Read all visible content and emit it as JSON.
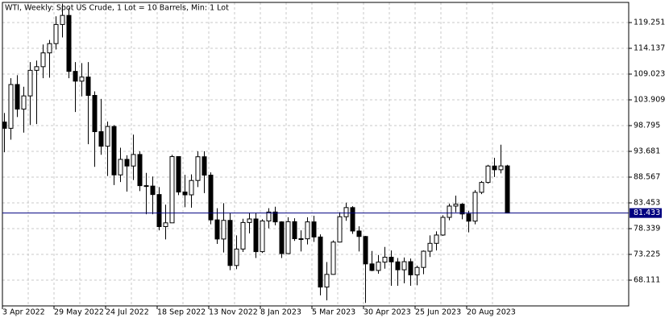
{
  "chart_data": {
    "type": "candlestick",
    "title": "WTI, Weekly:  Spot US Crude, 1 Lot = 10 Barrels, Min: 1 Lot",
    "categories": [
      "3 Apr 2022",
      null,
      null,
      null,
      null,
      null,
      null,
      null,
      "29 May 2022",
      null,
      null,
      null,
      null,
      null,
      null,
      null,
      "24 Jul 2022",
      null,
      null,
      null,
      null,
      null,
      null,
      null,
      "18 Sep 2022",
      null,
      null,
      null,
      null,
      null,
      null,
      null,
      "13 Nov 2022",
      null,
      null,
      null,
      null,
      null,
      null,
      null,
      "8 Jan 2023",
      null,
      null,
      null,
      null,
      null,
      null,
      null,
      "5 Mar 2023",
      null,
      null,
      null,
      null,
      null,
      null,
      null,
      "30 Apr 2023",
      null,
      null,
      null,
      null,
      null,
      null,
      null,
      "25 Jun 2023",
      null,
      null,
      null,
      null,
      null,
      null,
      null,
      "20 Aug 2023",
      null,
      null,
      null,
      null,
      null,
      null
    ],
    "open": [
      99.5,
      98.26,
      106.95,
      102.07,
      104.69,
      109.77,
      110.49,
      113.23,
      115.07,
      118.87,
      120.67,
      109.56,
      107.62,
      108.43,
      104.79,
      97.59,
      94.7,
      98.62,
      89.01,
      92.09,
      90.77,
      93.06,
      86.87,
      86.79,
      85.11,
      78.74,
      79.49,
      92.64,
      85.61,
      85.05,
      87.9,
      92.61,
      88.96,
      80.08,
      76.28,
      79.98,
      71.02,
      74.29,
      79.56,
      80.26,
      73.77,
      79.86,
      81.64,
      79.68,
      73.39,
      79.72,
      76.34,
      76.32,
      79.68,
      76.68,
      66.74,
      69.26,
      75.67,
      80.7,
      82.52,
      77.87,
      76.78,
      71.34,
      70.04,
      71.69,
      72.67,
      71.74,
      70.17,
      71.78,
      69.16,
      70.64,
      73.86,
      75.42,
      77.07,
      80.58,
      82.82,
      83.19,
      81.25,
      79.83,
      85.55,
      87.51,
      90.77,
      90.03,
      90.79
    ],
    "high": [
      101.3,
      108.2,
      108.8,
      106.5,
      111.4,
      111.7,
      114.9,
      115.8,
      120.5,
      123.0,
      122.1,
      111.4,
      111.2,
      111.4,
      105.6,
      104.1,
      99.6,
      98.9,
      94.4,
      92.9,
      97.0,
      93.7,
      89.4,
      88.7,
      86.6,
      83.1,
      93.0,
      92.7,
      89.0,
      89.1,
      93.7,
      93.7,
      89.5,
      82.4,
      83.4,
      81.5,
      77.0,
      80.3,
      81.5,
      81.5,
      80.2,
      82.4,
      82.7,
      79.8,
      80.6,
      80.4,
      78.0,
      80.6,
      80.9,
      77.2,
      71.7,
      76.0,
      81.6,
      83.5,
      82.8,
      78.8,
      76.9,
      73.9,
      73.1,
      74.7,
      74.0,
      72.5,
      72.6,
      72.4,
      71.0,
      74.0,
      77.0,
      77.8,
      81.0,
      83.3,
      84.9,
      83.4,
      81.9,
      86.0,
      87.8,
      91.0,
      92.4,
      95.0,
      91.0
    ],
    "low": [
      93.5,
      96.0,
      100.5,
      97.4,
      98.9,
      99.1,
      108.2,
      108.3,
      113.9,
      116.3,
      108.2,
      101.5,
      104.6,
      95.1,
      90.6,
      93.0,
      88.8,
      87.0,
      87.6,
      85.7,
      88.0,
      85.8,
      81.2,
      81.2,
      78.0,
      76.2,
      79.5,
      85.0,
      82.6,
      82.5,
      86.6,
      85.4,
      79.2,
      75.3,
      73.6,
      70.1,
      70.3,
      73.7,
      77.4,
      72.5,
      73.5,
      78.4,
      79.0,
      72.5,
      73.3,
      75.9,
      73.8,
      75.2,
      75.7,
      65.1,
      64.1,
      69.2,
      75.6,
      79.9,
      77.3,
      73.8,
      63.6,
      69.9,
      69.4,
      70.4,
      67.0,
      67.0,
      67.5,
      67.0,
      67.1,
      69.3,
      72.7,
      74.0,
      76.9,
      80.0,
      81.6,
      80.2,
      77.6,
      79.2,
      85.2,
      87.3,
      88.6,
      89.3,
      81.4
    ],
    "close": [
      98.26,
      106.95,
      102.07,
      104.69,
      109.77,
      110.49,
      113.23,
      115.07,
      118.87,
      120.67,
      109.56,
      107.62,
      108.43,
      104.79,
      97.59,
      94.7,
      98.62,
      89.01,
      92.09,
      90.77,
      93.06,
      86.87,
      86.79,
      85.11,
      78.74,
      79.49,
      92.64,
      85.61,
      85.05,
      87.9,
      92.61,
      88.96,
      80.08,
      76.28,
      79.98,
      71.02,
      74.29,
      79.56,
      80.26,
      73.77,
      79.86,
      81.64,
      79.68,
      73.39,
      79.72,
      76.34,
      76.32,
      79.68,
      76.68,
      66.74,
      69.26,
      75.67,
      80.7,
      82.52,
      77.87,
      76.78,
      71.34,
      70.04,
      71.69,
      72.67,
      71.74,
      70.17,
      71.78,
      69.16,
      70.64,
      73.86,
      75.42,
      77.07,
      80.58,
      82.82,
      83.19,
      81.25,
      79.83,
      85.55,
      87.51,
      90.77,
      90.03,
      90.79,
      81.433
    ],
    "ylim": [
      63.0,
      123.25
    ],
    "yticks": [
      68.111,
      73.225,
      78.339,
      83.453,
      88.567,
      93.681,
      98.795,
      103.909,
      109.023,
      114.137,
      119.251
    ],
    "last_price": 81.433,
    "grid": true,
    "up_color": "#ffffff",
    "down_color": "#000000",
    "last_price_color": "#000080"
  }
}
